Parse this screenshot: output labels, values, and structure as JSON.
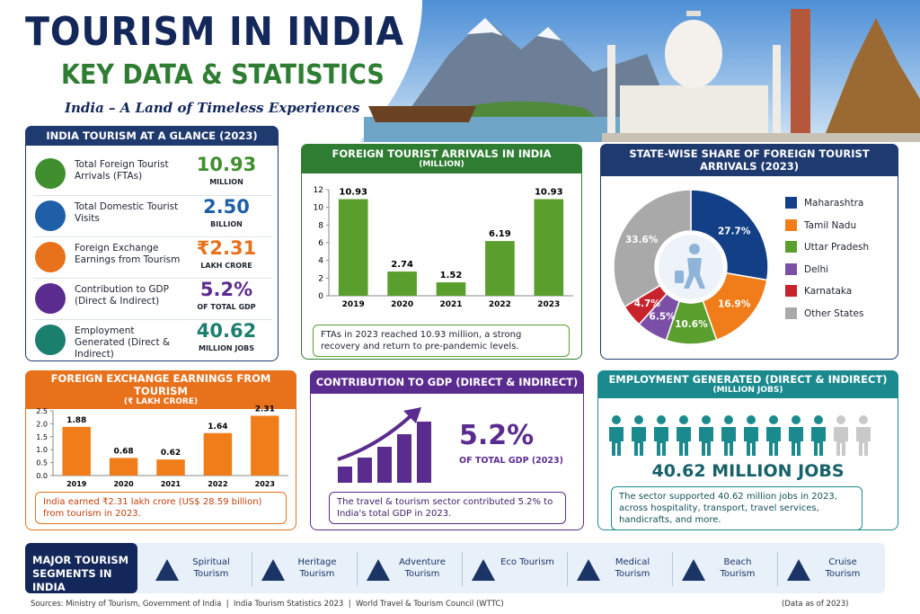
{
  "header": {
    "title": "TOURISM IN INDIA",
    "heading": "KEY DATA & STATISTICS",
    "tagline": "India – A Land of Timeless Experiences"
  },
  "glance": {
    "title": "INDIA TOURISM AT A GLANCE (2023)",
    "items": [
      {
        "label": "Total Foreign Tourist Arrivals (FTAs)",
        "value": "10.93",
        "unit": "MILLION"
      },
      {
        "label": "Total Domestic Tourist Visits",
        "value": "2.50",
        "unit": "BILLION"
      },
      {
        "label": "Foreign Exchange Earnings from Tourism",
        "value": "₹2.31",
        "unit": "LAKH CRORE"
      },
      {
        "label": "Contribution to GDP (Direct & Indirect)",
        "value": "5.2%",
        "unit": "OF TOTAL GDP"
      },
      {
        "label": "Employment Generated (Direct & Indirect)",
        "value": "40.62",
        "unit": "MILLION JOBS"
      }
    ]
  },
  "chart_data": [
    {
      "type": "bar",
      "title": "FOREIGN TOURIST ARRIVALS IN INDIA",
      "subtitle": "(MILLION)",
      "categories": [
        "2019",
        "2020",
        "2021",
        "2022",
        "2023"
      ],
      "values": [
        10.93,
        2.74,
        1.52,
        6.19,
        10.93
      ],
      "color": "#5a9e2e",
      "ylim": [
        0,
        12
      ],
      "yticks": [
        0,
        2,
        4,
        6,
        8,
        10,
        12
      ],
      "note": "FTAs in 2023 reached 10.93 million, a strong recovery and return to pre-pandemic levels."
    },
    {
      "type": "pie",
      "title": "STATE-WISE SHARE OF FOREIGN TOURIST ARRIVALS (2023)",
      "categories": [
        "Maharashtra",
        "Tamil Nadu",
        "Uttar Pradesh",
        "Delhi",
        "Karnataka",
        "Other States"
      ],
      "values": [
        27.7,
        16.9,
        10.6,
        6.5,
        4.7,
        33.6
      ],
      "value_labels": [
        "27.7%",
        "16.9%",
        "10.6%",
        "6.5%",
        "4.7%",
        "33.6%"
      ],
      "colors": [
        "#123f86",
        "#f07d1a",
        "#5a9e2e",
        "#7b4fa6",
        "#c8232c",
        "#a9a9a9"
      ]
    },
    {
      "type": "bar",
      "title": "FOREIGN EXCHANGE EARNINGS FROM TOURISM",
      "subtitle": "(₹ LAKH CRORE)",
      "categories": [
        "2019",
        "2020",
        "2021",
        "2022",
        "2023"
      ],
      "values": [
        1.88,
        0.68,
        0.62,
        1.64,
        2.31
      ],
      "color": "#f07d1a",
      "ylim": [
        0,
        2.5
      ],
      "yticks": [
        {
          "value": 0,
          "label": "0.0"
        },
        0.5,
        {
          "value": 1,
          "label": "1.0"
        },
        1.5,
        {
          "value": 2,
          "label": "2.0"
        },
        2.5
      ],
      "note": "India earned ₹2.31 lakh crore (US$ 28.59 billion) from tourism in 2023."
    }
  ],
  "gdp": {
    "title": "CONTRIBUTION TO GDP (DIRECT & INDIRECT)",
    "value": "5.2%",
    "unit": "OF TOTAL GDP (2023)",
    "note": "The travel & tourism sector contributed 5.2% to India's total GDP in 2023."
  },
  "employment": {
    "title": "EMPLOYMENT GENERATED (DIRECT & INDIRECT)",
    "subtitle": "(MILLION JOBS)",
    "value": "40.62 MILLION JOBS",
    "note": "The sector supported 40.62 million jobs in 2023, across hospitality, transport, travel services, handicrafts, and more."
  },
  "segments": {
    "title": "MAJOR TOURISM SEGMENTS IN INDIA",
    "items": [
      "Spiritual Tourism",
      "Heritage Tourism",
      "Adventure Tourism",
      "Eco Tourism",
      "Medical Tourism",
      "Beach Tourism",
      "Cruise Tourism"
    ]
  },
  "footer": {
    "sources": "Sources: Ministry of Tourism, Government of India  |  India Tourism Statistics 2023  |  World Travel & Tourism Council (WTTC)",
    "asof": "(Data as of 2023)"
  }
}
